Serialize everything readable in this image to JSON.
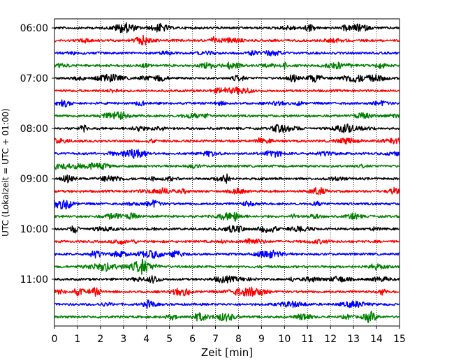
{
  "chart_data": {
    "type": "line",
    "title": "",
    "xlabel": "Zeit  [min]",
    "ylabel": "UTC (Lokalzeit = UTC + 01:00)",
    "xlim": [
      0,
      15
    ],
    "x_ticks": [
      0,
      1,
      2,
      3,
      4,
      5,
      6,
      7,
      8,
      9,
      10,
      11,
      12,
      13,
      14,
      15
    ],
    "vertical_grid": true,
    "ytick_labels": [
      "06:00",
      "07:00",
      "08:00",
      "09:00",
      "10:00",
      "11:00"
    ],
    "trace_interval_minutes": 15,
    "start_time": "06:00",
    "trace_count": 24,
    "series_colors": [
      "#000000",
      "#ff0000",
      "#0000ff",
      "#008000"
    ]
  }
}
